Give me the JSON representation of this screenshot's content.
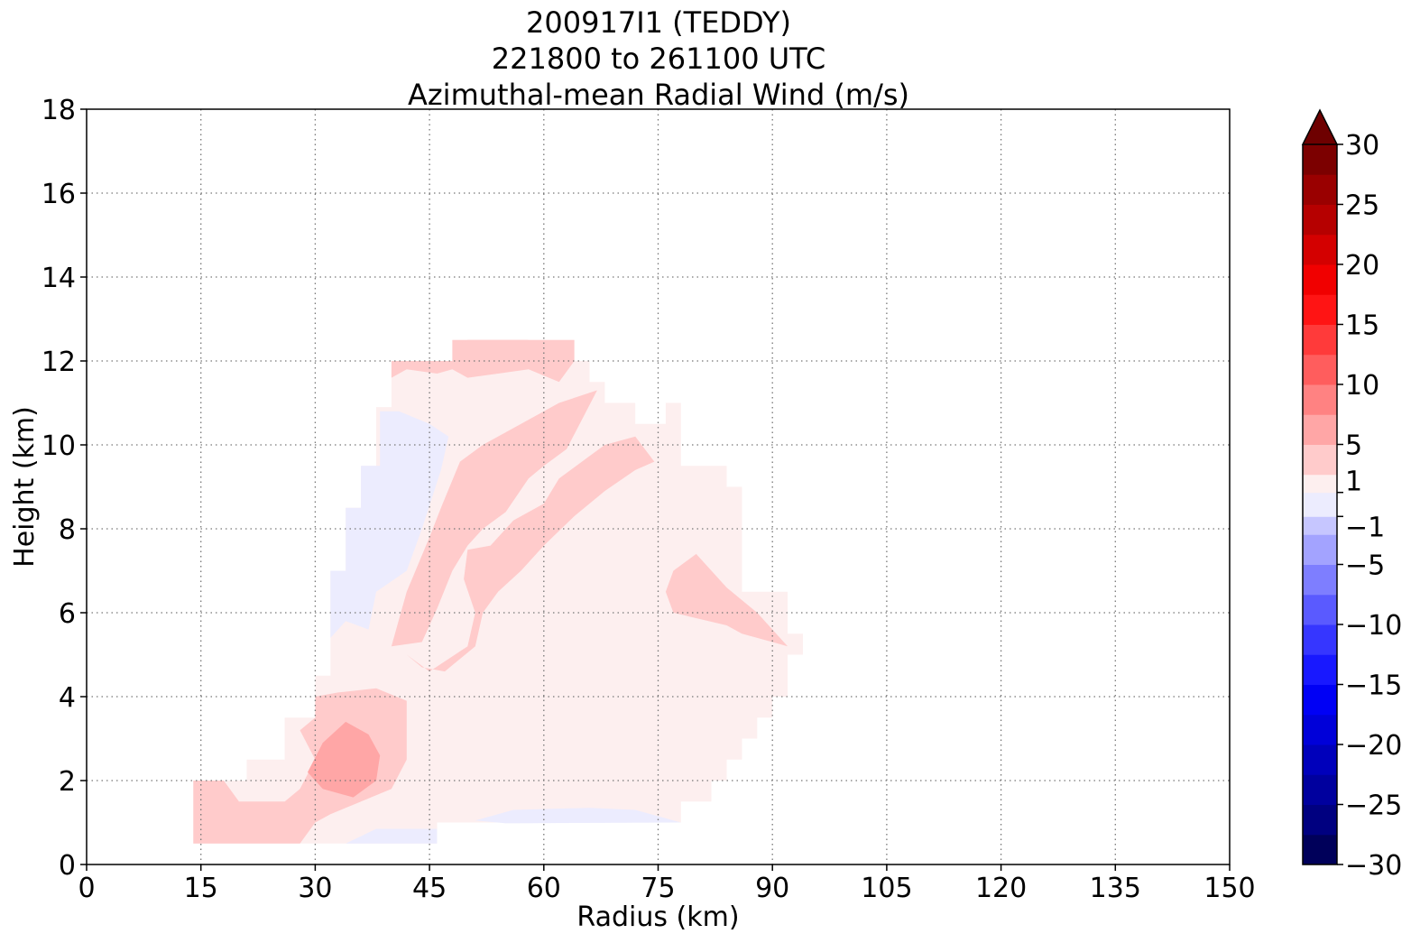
{
  "chart_data": {
    "type": "heatmap",
    "title": [
      "200917I1 (TEDDY)",
      "221800 to 261100 UTC",
      "Azimuthal-mean Radial Wind (m/s)"
    ],
    "xlabel": "Radius (km)",
    "ylabel": "Height (km)",
    "xlim": [
      0,
      150
    ],
    "ylim": [
      0,
      18
    ],
    "xticks": [
      0,
      15,
      30,
      45,
      60,
      75,
      90,
      105,
      120,
      135,
      150
    ],
    "yticks": [
      0,
      2,
      4,
      6,
      8,
      10,
      12,
      14,
      16,
      18
    ],
    "grid": true,
    "colorbar": {
      "range": [
        -30,
        30
      ],
      "extend": "max",
      "levels": [
        -30,
        -27.5,
        -25,
        -22.5,
        -20,
        -17.5,
        -15,
        -12.5,
        -10,
        -7.5,
        -5,
        -2.5,
        -1,
        1,
        2.5,
        5,
        7.5,
        10,
        12.5,
        15,
        17.5,
        20,
        22.5,
        25,
        27.5,
        30
      ],
      "ticks": [
        30,
        25,
        20,
        15,
        10,
        5,
        1,
        -1,
        -5,
        -10,
        -15,
        -20,
        -25,
        -30
      ],
      "tick_labels": [
        "30",
        "25",
        "20",
        "15",
        "10",
        "5",
        "1",
        "−1",
        "−5",
        "−10",
        "−15",
        "−20",
        "−25",
        "−30"
      ],
      "colors": [
        "#00005a",
        "#000080",
        "#00009e",
        "#0000bb",
        "#0000d9",
        "#0000f5",
        "#1818ff",
        "#3636ff",
        "#5a5aff",
        "#7e7eff",
        "#a3a3ff",
        "#c6c6ff",
        "#ececfe",
        "#fdefef",
        "#ffcbcb",
        "#ffa6a6",
        "#ff8282",
        "#ff5d5d",
        "#ff3a3a",
        "#ff1414",
        "#f10000",
        "#d40000",
        "#b60000",
        "#9a0000",
        "#7c0000"
      ],
      "extend_color": "#6e0000"
    },
    "regions": [
      {
        "level": "1 to 2.5",
        "color": "#fdefef",
        "points": [
          [
            14,
            0.5
          ],
          [
            14,
            2
          ],
          [
            21,
            2
          ],
          [
            21,
            2.5
          ],
          [
            26,
            2.5
          ],
          [
            26,
            3.5
          ],
          [
            30,
            3.5
          ],
          [
            30,
            4.5
          ],
          [
            32,
            4.5
          ],
          [
            32,
            7
          ],
          [
            34,
            7
          ],
          [
            34,
            8.5
          ],
          [
            36,
            8.5
          ],
          [
            36,
            9.5
          ],
          [
            38,
            9.5
          ],
          [
            38,
            10.9
          ],
          [
            40,
            10.9
          ],
          [
            40,
            12
          ],
          [
            48,
            12
          ],
          [
            48,
            12.5
          ],
          [
            64,
            12.5
          ],
          [
            64,
            12
          ],
          [
            66,
            12
          ],
          [
            66,
            11.5
          ],
          [
            68,
            11.5
          ],
          [
            68,
            11
          ],
          [
            72,
            11
          ],
          [
            72,
            10.5
          ],
          [
            76,
            10.5
          ],
          [
            76,
            11
          ],
          [
            78,
            11
          ],
          [
            78,
            9.5
          ],
          [
            84,
            9.5
          ],
          [
            84,
            9
          ],
          [
            86,
            9
          ],
          [
            86,
            6.5
          ],
          [
            92,
            6.5
          ],
          [
            92,
            5.5
          ],
          [
            94,
            5.5
          ],
          [
            94,
            5
          ],
          [
            92,
            5
          ],
          [
            92,
            4
          ],
          [
            90,
            4
          ],
          [
            90,
            3.5
          ],
          [
            88,
            3.5
          ],
          [
            88,
            3
          ],
          [
            86,
            3
          ],
          [
            86,
            2.5
          ],
          [
            84,
            2.5
          ],
          [
            84,
            2
          ],
          [
            82,
            2
          ],
          [
            82,
            1.5
          ],
          [
            78,
            1.5
          ],
          [
            78,
            1
          ],
          [
            46,
            1
          ],
          [
            46,
            0.5
          ]
        ]
      },
      {
        "level": "-2.5 to -1",
        "color": "#ececfe",
        "points": [
          [
            38.5,
            10.8
          ],
          [
            41,
            10.8
          ],
          [
            45,
            10.5
          ],
          [
            47.5,
            10.2
          ],
          [
            46.5,
            9.4
          ],
          [
            44,
            8
          ],
          [
            42,
            7
          ],
          [
            38,
            6.5
          ],
          [
            37,
            5.6
          ],
          [
            34,
            5.8
          ],
          [
            32,
            5.4
          ],
          [
            32,
            7
          ],
          [
            34,
            7
          ],
          [
            34,
            8.5
          ],
          [
            36,
            8.5
          ],
          [
            36,
            9.5
          ],
          [
            38.5,
            9.5
          ]
        ]
      },
      {
        "level": "-2.5 to -1",
        "color": "#ececfe",
        "points": [
          [
            34,
            0.5
          ],
          [
            38,
            0.85
          ],
          [
            46,
            0.85
          ],
          [
            46,
            0.5
          ]
        ]
      },
      {
        "level": "-2.5 to -1",
        "color": "#ececfe",
        "points": [
          [
            51,
            1.05
          ],
          [
            56,
            1.3
          ],
          [
            66,
            1.35
          ],
          [
            72,
            1.3
          ],
          [
            78,
            1.0
          ],
          [
            55,
            0.98
          ]
        ]
      },
      {
        "level": "2.5 to 5",
        "color": "#ffcbcb",
        "points": [
          [
            14,
            0.5
          ],
          [
            14,
            2
          ],
          [
            18,
            2
          ],
          [
            20,
            1.5
          ],
          [
            26,
            1.5
          ],
          [
            28,
            1.8
          ],
          [
            30,
            2.5
          ],
          [
            28,
            3.2
          ],
          [
            30,
            3.5
          ],
          [
            30,
            4.0
          ],
          [
            33,
            4.1
          ],
          [
            38,
            4.2
          ],
          [
            42,
            3.9
          ],
          [
            42,
            2.5
          ],
          [
            40,
            1.8
          ],
          [
            36,
            1.5
          ],
          [
            32,
            1.2
          ],
          [
            30,
            1.0
          ],
          [
            28,
            0.5
          ]
        ]
      },
      {
        "level": "2.5 to 5",
        "color": "#ffcbcb",
        "points": [
          [
            40,
            12
          ],
          [
            48,
            12
          ],
          [
            48,
            12.5
          ],
          [
            64,
            12.5
          ],
          [
            64,
            12
          ],
          [
            62,
            11.5
          ],
          [
            58,
            11.8
          ],
          [
            54,
            11.7
          ],
          [
            50,
            11.6
          ],
          [
            48,
            11.8
          ],
          [
            46,
            11.7
          ],
          [
            42,
            11.8
          ],
          [
            40,
            11.6
          ]
        ]
      },
      {
        "level": "2.5 to 5",
        "color": "#ffcbcb",
        "points": [
          [
            42,
            5
          ],
          [
            45,
            4.6
          ],
          [
            50,
            5.2
          ],
          [
            51,
            6
          ],
          [
            49.5,
            6.8
          ],
          [
            50,
            7.5
          ],
          [
            53,
            7.6
          ],
          [
            56,
            8.2
          ],
          [
            60,
            8.6
          ],
          [
            62,
            9.2
          ],
          [
            65,
            9.6
          ],
          [
            68,
            10.0
          ],
          [
            72,
            10.2
          ],
          [
            74.5,
            9.6
          ],
          [
            72,
            9.4
          ],
          [
            68,
            8.9
          ],
          [
            64,
            8.3
          ],
          [
            60,
            7.6
          ],
          [
            57,
            7.0
          ],
          [
            54,
            6.5
          ],
          [
            52,
            6.0
          ],
          [
            51,
            5.2
          ],
          [
            47,
            4.6
          ],
          [
            44,
            4.7
          ]
        ]
      },
      {
        "level": "2.5 to 5",
        "color": "#ffcbcb",
        "points": [
          [
            40,
            5.2
          ],
          [
            42,
            6.5
          ],
          [
            45,
            7.8
          ],
          [
            46.5,
            8.5
          ],
          [
            49,
            9.6
          ],
          [
            52,
            10.0
          ],
          [
            57,
            10.5
          ],
          [
            62,
            11.0
          ],
          [
            67,
            11.3
          ],
          [
            65,
            10.6
          ],
          [
            63,
            9.9
          ],
          [
            60,
            9.5
          ],
          [
            58,
            9.2
          ],
          [
            55,
            8.4
          ],
          [
            52,
            8.0
          ],
          [
            50,
            7.6
          ],
          [
            48,
            7.0
          ],
          [
            46,
            6.1
          ],
          [
            44,
            5.3
          ]
        ]
      },
      {
        "level": "2.5 to 5",
        "color": "#ffcbcb",
        "points": [
          [
            77,
            6
          ],
          [
            84,
            5.7
          ],
          [
            86,
            5.5
          ],
          [
            90,
            5.3
          ],
          [
            92,
            5.2
          ],
          [
            88,
            6
          ],
          [
            84,
            6.6
          ],
          [
            80,
            7.4
          ],
          [
            77,
            7.0
          ],
          [
            76,
            6.5
          ]
        ]
      },
      {
        "level": "5 to 7.5",
        "color": "#ffa6a6",
        "points": [
          [
            29,
            2.2
          ],
          [
            31,
            2.9
          ],
          [
            34,
            3.4
          ],
          [
            37,
            3.1
          ],
          [
            38.5,
            2.6
          ],
          [
            38,
            2.0
          ],
          [
            35,
            1.6
          ],
          [
            31,
            1.8
          ]
        ]
      },
      {
        "level": "5 to 7.5",
        "color": "#ffcbcb",
        "points": [
          [
            48,
            12.3
          ],
          [
            50,
            12.5
          ],
          [
            58,
            12.5
          ],
          [
            54,
            12.3
          ]
        ]
      }
    ]
  }
}
